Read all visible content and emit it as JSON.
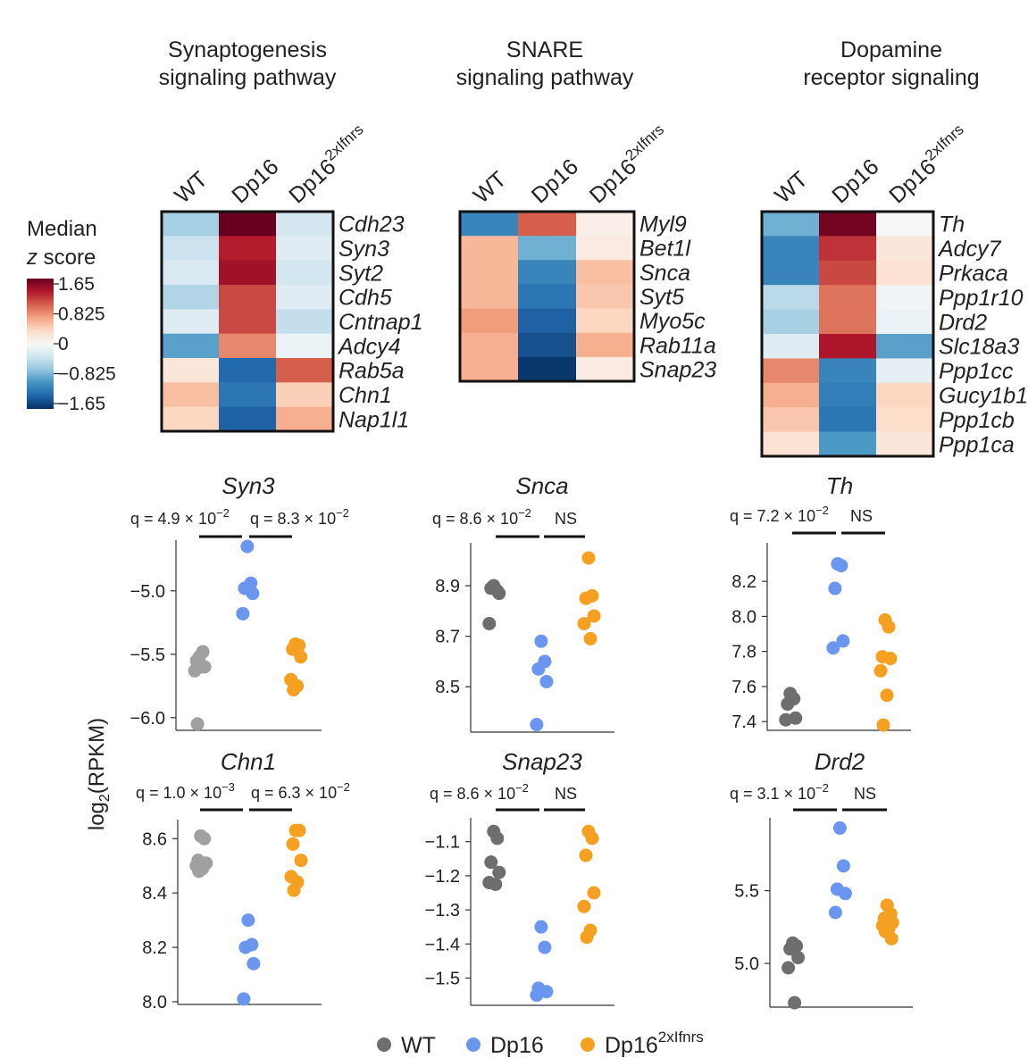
{
  "colorbar": {
    "title_line1": "Median",
    "title_line2_italic": "z",
    "title_line2_rest": " score",
    "ticks": [
      "1.65",
      "0.825",
      "0",
      "−0.825",
      "−1.65"
    ],
    "range": [
      -1.65,
      1.65
    ],
    "colors": [
      "#053061",
      "#2166ac",
      "#4393c3",
      "#92c5de",
      "#d1e5f0",
      "#f7f7f7",
      "#fddbc7",
      "#f4a582",
      "#d6604d",
      "#b2182b",
      "#67001f"
    ]
  },
  "legend": {
    "items": [
      {
        "label": "WT",
        "sup": "",
        "color": "#6e6e6e"
      },
      {
        "label": "Dp16",
        "sup": "",
        "color": "#6b96f0"
      },
      {
        "label": "Dp16",
        "sup": "2xIfnrs",
        "color": "#f5a020"
      }
    ]
  },
  "y_axis_label": {
    "main": "log",
    "sub": "2",
    "rest": "(RPKM)"
  },
  "chart_data": [
    {
      "type": "heatmap",
      "title_line1": "Synaptogenesis",
      "title_line2": "signaling pathway",
      "columns": [
        {
          "label": "WT",
          "sup": ""
        },
        {
          "label": "Dp16",
          "sup": ""
        },
        {
          "label": "Dp16",
          "sup": "2xIfnrs"
        }
      ],
      "rows": [
        "Cdh23",
        "Syn3",
        "Syt2",
        "Cdh5",
        "Cntnap1",
        "Adcy4",
        "Rab5a",
        "Chn1",
        "Nap1l1"
      ],
      "values": [
        [
          -0.55,
          1.65,
          -0.3
        ],
        [
          -0.35,
          1.3,
          -0.2
        ],
        [
          -0.25,
          1.4,
          -0.3
        ],
        [
          -0.5,
          1.1,
          -0.2
        ],
        [
          -0.2,
          1.1,
          -0.4
        ],
        [
          -0.9,
          0.8,
          -0.1
        ],
        [
          0.2,
          -1.3,
          1.0
        ],
        [
          0.5,
          -1.2,
          0.4
        ],
        [
          0.35,
          -1.35,
          0.6
        ]
      ],
      "range": [
        -1.65,
        1.65
      ]
    },
    {
      "type": "heatmap",
      "title_line1": "SNARE",
      "title_line2": "signaling pathway",
      "columns": [
        {
          "label": "WT",
          "sup": ""
        },
        {
          "label": "Dp16",
          "sup": ""
        },
        {
          "label": "Dp16",
          "sup": "2xIfnrs"
        }
      ],
      "rows": [
        "Myl9",
        "Bet1l",
        "Snca",
        "Syt5",
        "Myo5c",
        "Rab11a",
        "Snap23"
      ],
      "values": [
        [
          -1.1,
          1.0,
          0.1
        ],
        [
          0.55,
          -0.8,
          0.15
        ],
        [
          0.55,
          -1.1,
          0.5
        ],
        [
          0.55,
          -1.2,
          0.45
        ],
        [
          0.7,
          -1.35,
          0.35
        ],
        [
          0.6,
          -1.45,
          0.6
        ],
        [
          0.6,
          -1.6,
          0.15
        ]
      ],
      "range": [
        -1.65,
        1.65
      ]
    },
    {
      "type": "heatmap",
      "title_line1": "Dopamine",
      "title_line2": "receptor signaling",
      "columns": [
        {
          "label": "WT",
          "sup": ""
        },
        {
          "label": "Dp16",
          "sup": ""
        },
        {
          "label": "Dp16",
          "sup": "2xIfnrs"
        }
      ],
      "rows": [
        "Th",
        "Adcy7",
        "Prkaca",
        "Ppp1r10",
        "Drd2",
        "Slc18a3",
        "Ppp1cc",
        "Gucy1b1",
        "Ppp1cb",
        "Ppp1ca"
      ],
      "values": [
        [
          -0.8,
          1.6,
          0.0
        ],
        [
          -1.1,
          1.2,
          0.2
        ],
        [
          -1.1,
          1.1,
          0.25
        ],
        [
          -0.45,
          0.9,
          -0.05
        ],
        [
          -0.55,
          0.9,
          -0.1
        ],
        [
          -0.2,
          1.35,
          -0.9
        ],
        [
          0.8,
          -1.1,
          -0.15
        ],
        [
          0.6,
          -1.15,
          0.35
        ],
        [
          0.45,
          -1.2,
          0.3
        ],
        [
          0.25,
          -0.95,
          0.2
        ]
      ],
      "range": [
        -1.65,
        1.65
      ]
    },
    {
      "type": "scatter",
      "title": "Syn3",
      "q": [
        {
          "text": "q = 4.9 × 10",
          "exp": "−2"
        },
        {
          "text": "q = 8.3 × 10",
          "exp": "−2"
        }
      ],
      "ylim": [
        -6.1,
        -4.6
      ],
      "yticks": [
        -5.0,
        -5.5,
        -6.0
      ],
      "ytick_labels": [
        "−5.0",
        "−5.5",
        "−6.0"
      ],
      "groups": {
        "WT": [
          -5.52,
          -5.48,
          -5.55,
          -5.6,
          -5.63,
          -5.6,
          -6.05
        ],
        "Dp16": [
          -4.65,
          -4.94,
          -4.98,
          -5.02,
          -5.18
        ],
        "Dp16_2xIfnrs": [
          -5.42,
          -5.43,
          -5.46,
          -5.52,
          -5.7,
          -5.75,
          -5.78
        ]
      }
    },
    {
      "type": "scatter",
      "title": "Snca",
      "q": [
        {
          "text": "q = 8.6 × 10",
          "exp": "−2"
        },
        {
          "text": "NS",
          "exp": ""
        }
      ],
      "ylim": [
        8.32,
        9.07
      ],
      "yticks": [
        8.9,
        8.7,
        8.5
      ],
      "ytick_labels": [
        "8.9",
        "8.7",
        "8.5"
      ],
      "groups": {
        "WT": [
          8.9,
          8.88,
          8.89,
          8.87,
          8.75
        ],
        "Dp16": [
          8.68,
          8.6,
          8.57,
          8.52,
          8.35
        ],
        "Dp16_2xIfnrs": [
          9.01,
          8.86,
          8.85,
          8.78,
          8.75,
          8.69
        ]
      }
    },
    {
      "type": "scatter",
      "title": "Th",
      "q": [
        {
          "text": "q = 7.2 × 10",
          "exp": "−2"
        },
        {
          "text": "NS",
          "exp": ""
        }
      ],
      "ylim": [
        7.35,
        8.42
      ],
      "yticks": [
        8.2,
        8.0,
        7.8,
        7.6,
        7.4
      ],
      "ytick_labels": [
        "8.2",
        "8.0",
        "7.8",
        "7.6",
        "7.4"
      ],
      "groups": {
        "WT": [
          7.56,
          7.53,
          7.5,
          7.42,
          7.41
        ],
        "Dp16": [
          8.3,
          8.29,
          8.16,
          7.86,
          7.82
        ],
        "Dp16_2xIfnrs": [
          7.98,
          7.94,
          7.77,
          7.76,
          7.69,
          7.55,
          7.38
        ]
      }
    },
    {
      "type": "scatter",
      "title": "Chn1",
      "q": [
        {
          "text": "q = 1.0 × 10",
          "exp": "−3"
        },
        {
          "text": "q = 6.3 × 10",
          "exp": "−2"
        }
      ],
      "ylim": [
        7.99,
        8.67
      ],
      "yticks": [
        8.6,
        8.4,
        8.2,
        8.0
      ],
      "ytick_labels": [
        "8.6",
        "8.4",
        "8.2",
        "8.0"
      ],
      "groups": {
        "WT": [
          8.61,
          8.6,
          8.52,
          8.51,
          8.5,
          8.49,
          8.48
        ],
        "Dp16": [
          8.3,
          8.21,
          8.2,
          8.14,
          8.01
        ],
        "Dp16_2xIfnrs": [
          8.63,
          8.63,
          8.58,
          8.52,
          8.46,
          8.44,
          8.41
        ]
      }
    },
    {
      "type": "scatter",
      "title": "Snap23",
      "q": [
        {
          "text": "q = 8.6 × 10",
          "exp": "−2"
        },
        {
          "text": "NS",
          "exp": ""
        }
      ],
      "ylim": [
        -1.58,
        -1.03
      ],
      "yticks": [
        -1.1,
        -1.2,
        -1.3,
        -1.4,
        -1.5
      ],
      "ytick_labels": [
        "−1.1",
        "−1.2",
        "−1.3",
        "−1.4",
        "−1.5"
      ],
      "groups": {
        "WT": [
          -1.07,
          -1.09,
          -1.16,
          -1.19,
          -1.22,
          -1.225
        ],
        "Dp16": [
          -1.35,
          -1.41,
          -1.53,
          -1.54,
          -1.55
        ],
        "Dp16_2xIfnrs": [
          -1.07,
          -1.09,
          -1.14,
          -1.25,
          -1.29,
          -1.36,
          -1.38
        ]
      }
    },
    {
      "type": "scatter",
      "title": "Drd2",
      "q": [
        {
          "text": "q =  3.1 × 10",
          "exp": "−2"
        },
        {
          "text": "NS",
          "exp": ""
        }
      ],
      "ylim": [
        4.7,
        6.0
      ],
      "yticks": [
        5.5,
        5.0
      ],
      "ytick_labels": [
        "5.5",
        "5.0"
      ],
      "groups": {
        "WT": [
          5.14,
          5.12,
          5.1,
          5.04,
          4.97,
          4.73
        ],
        "Dp16": [
          5.93,
          5.67,
          5.51,
          5.48,
          5.35
        ],
        "Dp16_2xIfnrs": [
          5.4,
          5.34,
          5.31,
          5.28,
          5.26,
          5.24,
          5.22,
          5.17
        ]
      }
    }
  ]
}
